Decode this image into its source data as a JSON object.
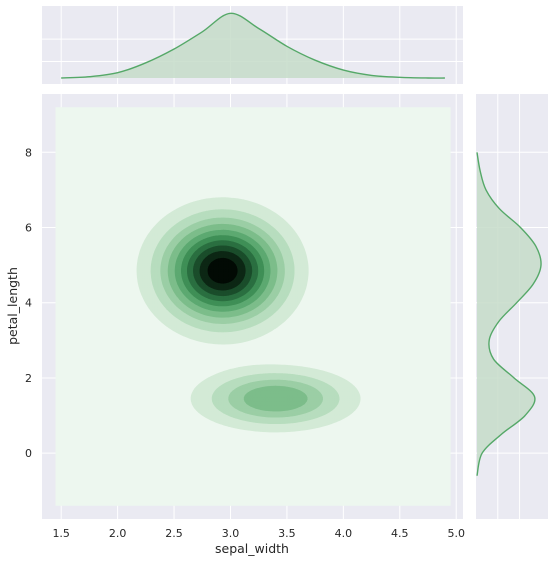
{
  "chart_data": {
    "type": "kde-jointplot",
    "xlabel": "sepal_width",
    "ylabel": "petal_length",
    "xlim": [
      1.33,
      5.06
    ],
    "ylim": [
      -1.75,
      9.55
    ],
    "x_ticks": [
      "1.5",
      "2.0",
      "2.5",
      "3.0",
      "3.5",
      "4.0",
      "4.5",
      "5.0"
    ],
    "y_ticks": [
      "0",
      "2",
      "4",
      "6",
      "8"
    ],
    "x_tick_values": [
      1.5,
      2.0,
      2.5,
      3.0,
      3.5,
      4.0,
      4.5,
      5.0
    ],
    "y_tick_values": [
      0,
      2,
      4,
      6,
      8
    ],
    "grid": true,
    "colors": {
      "panel_bg": "#eaeaf2",
      "grid": "#ffffff",
      "kde_line": "#55a868",
      "kde_fill": "#c6dcc9",
      "level_colors": [
        "#edf7ef",
        "#d3ead6",
        "#b7ddbe",
        "#9bcea5",
        "#7cbd8a",
        "#5ca971",
        "#3f8f56",
        "#2a6f40",
        "#1a4d2b",
        "#0c2714",
        "#020a04"
      ]
    },
    "marginal_x": {
      "x": [
        1.5,
        1.75,
        2.0,
        2.25,
        2.5,
        2.75,
        3.0,
        3.25,
        3.5,
        3.75,
        4.0,
        4.25,
        4.5,
        4.75,
        4.9
      ],
      "density": [
        0.0,
        0.02,
        0.08,
        0.23,
        0.44,
        0.7,
        0.98,
        0.75,
        0.48,
        0.27,
        0.12,
        0.04,
        0.01,
        0.0,
        0.0
      ]
    },
    "marginal_y": {
      "y": [
        -0.6,
        0.0,
        0.5,
        1.0,
        1.5,
        2.0,
        2.5,
        3.0,
        3.5,
        4.0,
        4.5,
        5.0,
        5.5,
        6.0,
        6.5,
        7.0,
        7.5,
        8.0
      ],
      "density": [
        0.0,
        0.08,
        0.38,
        0.75,
        0.9,
        0.58,
        0.26,
        0.19,
        0.34,
        0.62,
        0.88,
        1.0,
        0.92,
        0.68,
        0.35,
        0.14,
        0.05,
        0.0
      ]
    },
    "density_components": [
      {
        "mx": 2.93,
        "my": 4.85,
        "sx": 0.32,
        "sy": 0.82,
        "w": 1.0
      },
      {
        "mx": 3.4,
        "my": 1.45,
        "sx": 0.38,
        "sy": 0.45,
        "w": 0.42
      }
    ]
  }
}
